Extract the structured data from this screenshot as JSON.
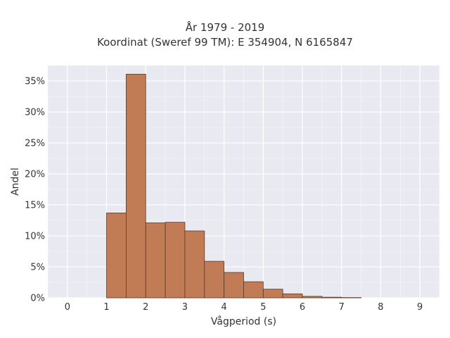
{
  "chart_data": {
    "type": "bar",
    "title_lines": [
      "År 1979 - 2019",
      "Koordinat (Sweref 99 TM): E 354904, N 6165847"
    ],
    "xlabel": "Vågperiod (s)",
    "ylabel": "Andel",
    "x_ticks": [
      "0",
      "1",
      "2",
      "3",
      "4",
      "5",
      "6",
      "7",
      "8",
      "9"
    ],
    "y_ticks": [
      "0%",
      "5%",
      "10%",
      "15%",
      "20%",
      "25%",
      "30%",
      "35%"
    ],
    "xlim": [
      -0.5,
      9.5
    ],
    "ylim": [
      0,
      37.5
    ],
    "bin_width": 0.5,
    "bins": [
      {
        "x0": 1.0,
        "value": 13.7
      },
      {
        "x0": 1.5,
        "value": 36.1
      },
      {
        "x0": 2.0,
        "value": 12.1
      },
      {
        "x0": 2.5,
        "value": 12.2
      },
      {
        "x0": 3.0,
        "value": 10.8
      },
      {
        "x0": 3.5,
        "value": 5.9
      },
      {
        "x0": 4.0,
        "value": 4.1
      },
      {
        "x0": 4.5,
        "value": 2.6
      },
      {
        "x0": 5.0,
        "value": 1.4
      },
      {
        "x0": 5.5,
        "value": 0.65
      },
      {
        "x0": 6.0,
        "value": 0.25
      },
      {
        "x0": 6.5,
        "value": 0.1
      },
      {
        "x0": 7.0,
        "value": 0.05
      }
    ],
    "grid": true,
    "colors": {
      "bar": "#c17b55",
      "bar_edge": "#5a3a28",
      "plot_bg": "#e9e9f1",
      "grid": "#ffffff"
    }
  }
}
